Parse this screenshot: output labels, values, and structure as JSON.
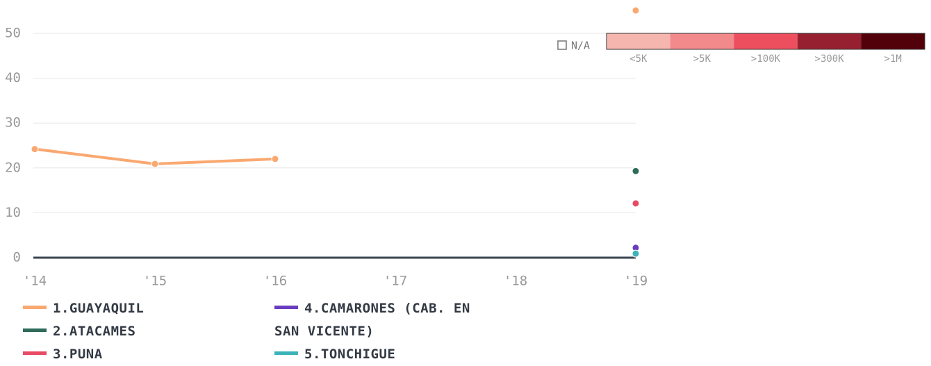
{
  "chart_data": {
    "type": "line",
    "categories": [
      "'14",
      "'15",
      "'16",
      "'17",
      "'18",
      "'19"
    ],
    "ylim": [
      0,
      57
    ],
    "yticks": [
      0,
      10,
      20,
      30,
      40,
      50
    ],
    "grid": true,
    "series": [
      {
        "name": "1.GUAYAQUIL",
        "color": "#f9a870",
        "values": [
          24.2,
          20.9,
          22.0,
          null,
          null,
          55.1
        ]
      },
      {
        "name": "2.ATACAMES",
        "color": "#2e6b58",
        "values": [
          null,
          null,
          null,
          null,
          null,
          19.3
        ]
      },
      {
        "name": "3.PUNA",
        "color": "#e84a64",
        "values": [
          null,
          null,
          null,
          null,
          null,
          12.1
        ]
      },
      {
        "name": "4.CAMARONES (CAB. EN SAN VICENTE)",
        "color": "#6a3dbf",
        "values": [
          null,
          null,
          null,
          null,
          null,
          2.2
        ]
      },
      {
        "name": "5.TONCHIGUE",
        "color": "#3bb3b8",
        "values": [
          null,
          null,
          null,
          null,
          null,
          0.9
        ]
      }
    ],
    "color_scale": {
      "na_label": "N/A",
      "bins": [
        {
          "label": "<5K",
          "color": "#f4b6ae"
        },
        {
          "label": ">5K",
          "color": "#f28a8c"
        },
        {
          "label": ">100K",
          "color": "#ee4f5f"
        },
        {
          "label": ">300K",
          "color": "#96202f"
        },
        {
          "label": ">1M",
          "color": "#520009"
        }
      ]
    }
  }
}
